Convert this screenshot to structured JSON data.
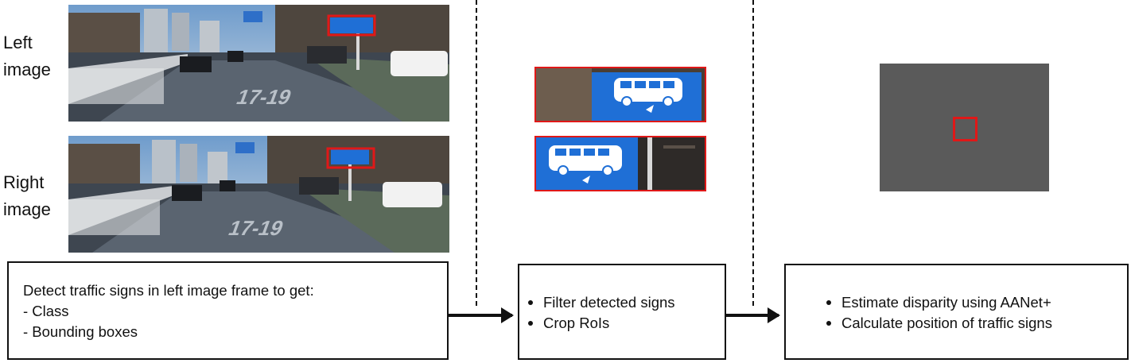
{
  "labels": {
    "left_image": [
      "Left",
      "image"
    ],
    "right_image": [
      "Right",
      "image"
    ]
  },
  "boxes": {
    "detect": {
      "lines": [
        "Detect traffic signs in left image frame to get:",
        "- Class",
        "- Bounding boxes"
      ]
    },
    "filter": {
      "bullets": [
        "Filter detected signs",
        "Crop RoIs"
      ]
    },
    "estimate": {
      "bullets": [
        "Estimate disparity using AANet+",
        "Calculate position of traffic signs"
      ]
    }
  },
  "scene_text": {
    "road_marking": "17-19"
  },
  "colors": {
    "detection_box": "#e01818",
    "sign_blue": "#1f6fd6",
    "disparity_map": "#5a5a5a",
    "outline": "#111111"
  }
}
